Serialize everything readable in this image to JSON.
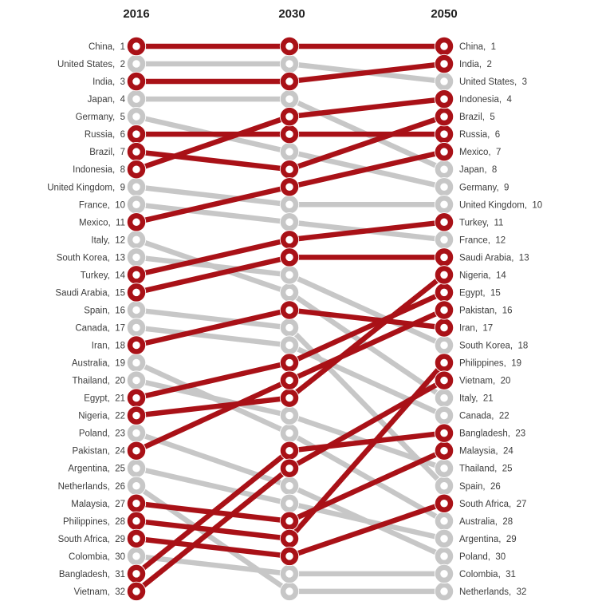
{
  "colors": {
    "highlight": "#a91117",
    "muted": "#c7c7c7",
    "node_fill": "#ffffff",
    "label_text": "#3d3d3d",
    "header_text": "#1f1f1f",
    "background": "#ffffff"
  },
  "chart_data": {
    "type": "line",
    "subtype": "bump-rank-chart",
    "title": "",
    "x": [
      "2016",
      "2030",
      "2050"
    ],
    "ylabel": "",
    "xlabel": "",
    "rank_range": [
      1,
      32
    ],
    "grid": false,
    "legend": "none",
    "label_format": "name, rank",
    "series": [
      {
        "name": "China",
        "ranks": [
          1,
          1,
          1
        ],
        "highlighted": true
      },
      {
        "name": "United States",
        "ranks": [
          2,
          2,
          3
        ],
        "highlighted": false
      },
      {
        "name": "India",
        "ranks": [
          3,
          3,
          2
        ],
        "highlighted": true
      },
      {
        "name": "Japan",
        "ranks": [
          4,
          4,
          8
        ],
        "highlighted": false
      },
      {
        "name": "Germany",
        "ranks": [
          5,
          7,
          9
        ],
        "highlighted": false
      },
      {
        "name": "Russia",
        "ranks": [
          6,
          6,
          6
        ],
        "highlighted": true
      },
      {
        "name": "Brazil",
        "ranks": [
          7,
          8,
          5
        ],
        "highlighted": true
      },
      {
        "name": "Indonesia",
        "ranks": [
          8,
          5,
          4
        ],
        "highlighted": true
      },
      {
        "name": "United Kingdom",
        "ranks": [
          9,
          10,
          10
        ],
        "highlighted": false
      },
      {
        "name": "France",
        "ranks": [
          10,
          11,
          12
        ],
        "highlighted": false
      },
      {
        "name": "Mexico",
        "ranks": [
          11,
          9,
          7
        ],
        "highlighted": true
      },
      {
        "name": "Italy",
        "ranks": [
          12,
          15,
          21
        ],
        "highlighted": false
      },
      {
        "name": "South Korea",
        "ranks": [
          13,
          14,
          18
        ],
        "highlighted": false
      },
      {
        "name": "Turkey",
        "ranks": [
          14,
          12,
          11
        ],
        "highlighted": true
      },
      {
        "name": "Saudi Arabia",
        "ranks": [
          15,
          13,
          13
        ],
        "highlighted": true
      },
      {
        "name": "Spain",
        "ranks": [
          16,
          17,
          26
        ],
        "highlighted": false
      },
      {
        "name": "Canada",
        "ranks": [
          17,
          18,
          22
        ],
        "highlighted": false
      },
      {
        "name": "Iran",
        "ranks": [
          18,
          16,
          17
        ],
        "highlighted": true
      },
      {
        "name": "Australia",
        "ranks": [
          19,
          23,
          28
        ],
        "highlighted": false
      },
      {
        "name": "Thailand",
        "ranks": [
          20,
          22,
          25
        ],
        "highlighted": false
      },
      {
        "name": "Egypt",
        "ranks": [
          21,
          19,
          15
        ],
        "highlighted": true
      },
      {
        "name": "Nigeria",
        "ranks": [
          22,
          21,
          14
        ],
        "highlighted": true
      },
      {
        "name": "Poland",
        "ranks": [
          23,
          26,
          30
        ],
        "highlighted": false
      },
      {
        "name": "Pakistan",
        "ranks": [
          24,
          20,
          16
        ],
        "highlighted": true
      },
      {
        "name": "Argentina",
        "ranks": [
          25,
          27,
          29
        ],
        "highlighted": false
      },
      {
        "name": "Netherlands",
        "ranks": [
          26,
          32,
          32
        ],
        "highlighted": false
      },
      {
        "name": "Malaysia",
        "ranks": [
          27,
          28,
          24
        ],
        "highlighted": true
      },
      {
        "name": "Philippines",
        "ranks": [
          28,
          29,
          19
        ],
        "highlighted": true
      },
      {
        "name": "South Africa",
        "ranks": [
          29,
          30,
          27
        ],
        "highlighted": true
      },
      {
        "name": "Colombia",
        "ranks": [
          30,
          31,
          31
        ],
        "highlighted": false
      },
      {
        "name": "Bangladesh",
        "ranks": [
          31,
          24,
          23
        ],
        "highlighted": true
      },
      {
        "name": "Vietnam",
        "ranks": [
          32,
          25,
          20
        ],
        "highlighted": true
      }
    ]
  }
}
